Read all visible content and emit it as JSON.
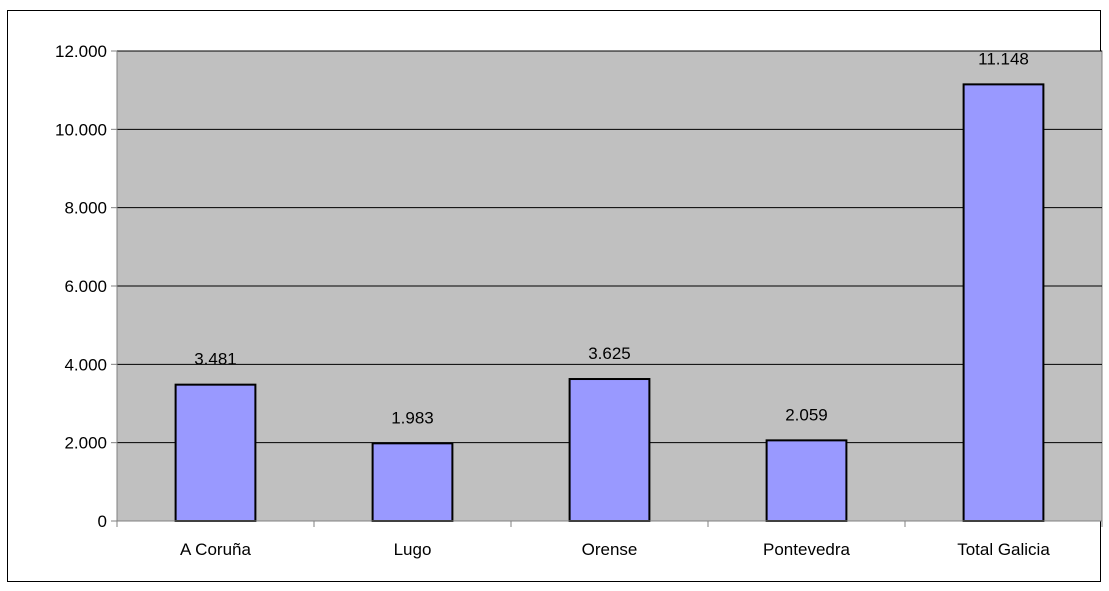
{
  "chart_data": {
    "type": "bar",
    "categories": [
      "A Coruña",
      "Lugo",
      "Orense",
      "Pontevedra",
      "Total Galicia"
    ],
    "values": [
      3481,
      1983,
      3625,
      2059,
      11148
    ],
    "data_labels": [
      "3.481",
      "1.983",
      "3.625",
      "2.059",
      "11.148"
    ],
    "title": "",
    "xlabel": "",
    "ylabel": "",
    "ylim": [
      0,
      12000
    ],
    "y_ticks": [
      0,
      2000,
      4000,
      6000,
      8000,
      10000,
      12000
    ],
    "y_tick_labels": [
      "0",
      "2.000",
      "4.000",
      "6.000",
      "8.000",
      "10.000",
      "12.000"
    ],
    "grid": true,
    "legend": "none",
    "colors": {
      "plot_background": "#c0c0c0",
      "bar_fill": "#9999ff",
      "bar_stroke": "#000000",
      "gridline": "#000000",
      "axis": "#808080"
    }
  }
}
